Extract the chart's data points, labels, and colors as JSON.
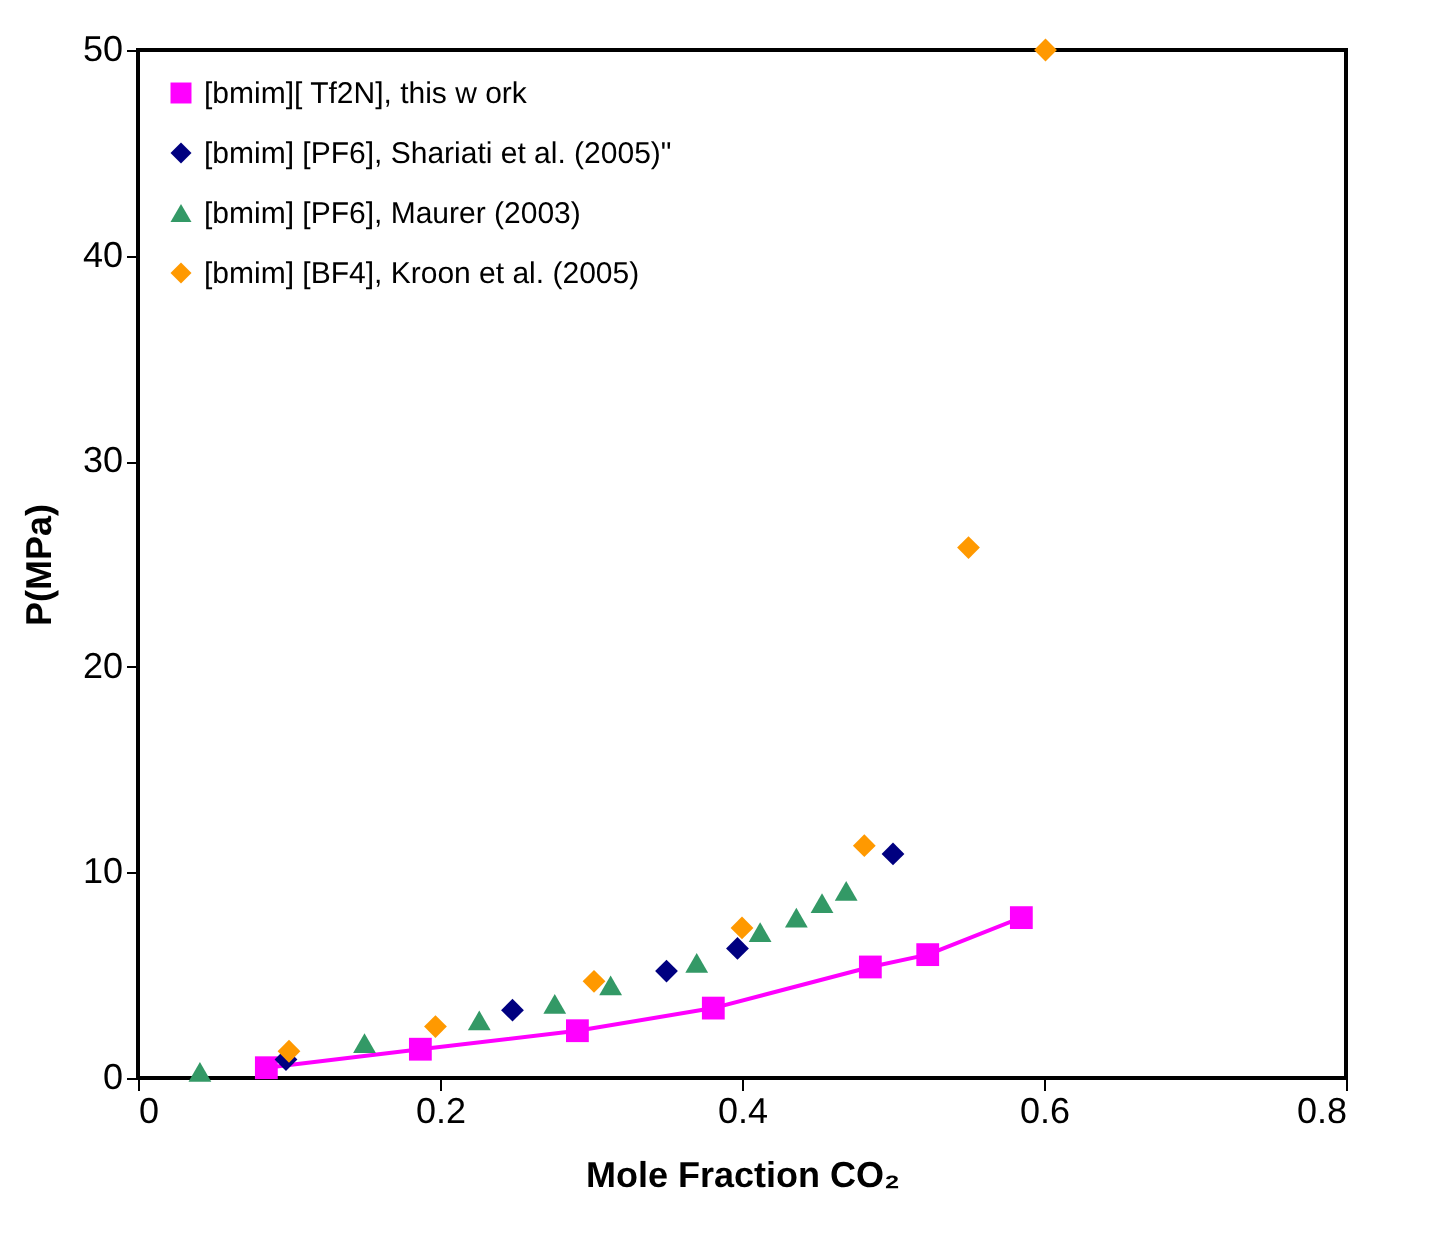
{
  "chart_data": {
    "type": "scatter",
    "xlabel": "Mole Fraction CO₂",
    "ylabel": "P(MPa)",
    "xlim": [
      0,
      0.8
    ],
    "ylim": [
      0,
      50
    ],
    "xticks": [
      0,
      0.2,
      0.4,
      0.6,
      0.8
    ],
    "yticks": [
      0,
      10,
      20,
      30,
      40,
      50
    ],
    "grid": false,
    "legend": "top left",
    "series": [
      {
        "name": "[bmim][ Tf2N], this w ork",
        "type": "line",
        "marker": "square",
        "color": "#ff00ff",
        "x": [
          0.085,
          0.187,
          0.291,
          0.381,
          0.485,
          0.523,
          0.585
        ],
        "values": [
          0.5,
          1.4,
          2.3,
          3.4,
          5.4,
          6.0,
          7.8
        ]
      },
      {
        "name": "[bmim] [PF6], Shariati et al. (2005)\"",
        "type": "scatter",
        "marker": "diamond",
        "color": "#000080",
        "x": [
          0.098,
          0.248,
          0.35,
          0.397,
          0.5
        ],
        "values": [
          0.9,
          3.3,
          5.2,
          6.3,
          10.9
        ]
      },
      {
        "name": "[bmim] [PF6], Maurer (2003)",
        "type": "scatter",
        "marker": "triangle",
        "color": "#339966",
        "x": [
          0.041,
          0.15,
          0.226,
          0.276,
          0.313,
          0.37,
          0.412,
          0.436,
          0.453,
          0.469
        ],
        "values": [
          0.3,
          1.7,
          2.8,
          3.6,
          4.5,
          5.6,
          7.1,
          7.8,
          8.5,
          9.1
        ]
      },
      {
        "name": "[bmim] [BF4], Kroon et al. (2005)",
        "type": "scatter",
        "marker": "diamond",
        "color": "#ff9900",
        "x": [
          0.1,
          0.197,
          0.302,
          0.4,
          0.481,
          0.55,
          0.601
        ],
        "values": [
          1.3,
          2.5,
          4.7,
          7.3,
          11.3,
          25.8,
          50.0
        ]
      }
    ]
  }
}
